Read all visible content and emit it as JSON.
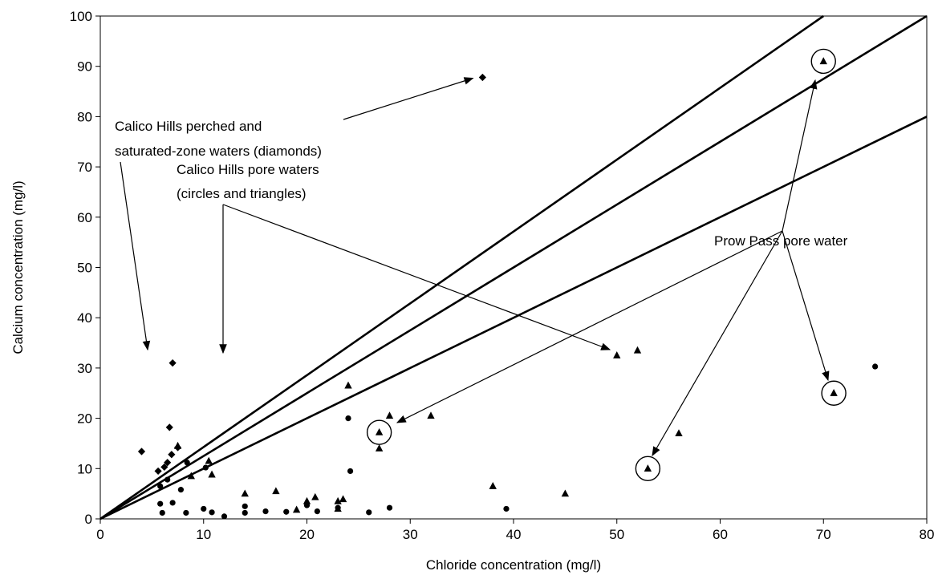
{
  "chart_data": {
    "type": "scatter",
    "title": "",
    "xlabel": "Chloride concentration (mg/l)",
    "ylabel": "Calcium concentration (mg/l)",
    "xlim": [
      0,
      80
    ],
    "ylim": [
      0,
      100
    ],
    "xticks": [
      0,
      10,
      20,
      30,
      40,
      50,
      60,
      70,
      80
    ],
    "yticks": [
      0,
      10,
      20,
      30,
      40,
      50,
      60,
      70,
      80,
      90,
      100
    ],
    "grid": false,
    "reference_lines": [
      {
        "slope": 1.4286
      },
      {
        "slope": 1.25
      },
      {
        "slope": 1.0
      }
    ],
    "series": [
      {
        "marker": "diamond",
        "points": [
          [
            4,
            13.4
          ],
          [
            6.7,
            18.2
          ],
          [
            7,
            31
          ],
          [
            37,
            87.8
          ],
          [
            7.5,
            14.2
          ],
          [
            6.9,
            12.8
          ],
          [
            6.5,
            11.2
          ],
          [
            5.6,
            9.5
          ],
          [
            6.2,
            10.3
          ]
        ]
      },
      {
        "marker": "circle",
        "points": [
          [
            5.8,
            3
          ],
          [
            6,
            1.2
          ],
          [
            5.8,
            6.5
          ],
          [
            6.5,
            7.8
          ],
          [
            7,
            3.2
          ],
          [
            7.8,
            5.8
          ],
          [
            8.3,
            1.2
          ],
          [
            8.4,
            11.2
          ],
          [
            10,
            2
          ],
          [
            10.2,
            10.2
          ],
          [
            10.8,
            1.3
          ],
          [
            12,
            0.5
          ],
          [
            14,
            1.2
          ],
          [
            14,
            2.5
          ],
          [
            16,
            1.5
          ],
          [
            18,
            1.4
          ],
          [
            20,
            2.7
          ],
          [
            21,
            1.5
          ],
          [
            23,
            2.2
          ],
          [
            24,
            20
          ],
          [
            24.2,
            9.5
          ],
          [
            26,
            1.3
          ],
          [
            28,
            2.2
          ],
          [
            39.3,
            2
          ],
          [
            75,
            30.3
          ]
        ]
      },
      {
        "marker": "triangle",
        "points": [
          [
            7.5,
            14.5
          ],
          [
            8.8,
            8.5
          ],
          [
            10.5,
            11.5
          ],
          [
            10.8,
            8.8
          ],
          [
            14,
            5
          ],
          [
            17,
            5.5
          ],
          [
            19,
            1.8
          ],
          [
            20,
            3.5
          ],
          [
            20.8,
            4.3
          ],
          [
            23,
            3.5
          ],
          [
            23.5,
            3.9
          ],
          [
            23,
            2
          ],
          [
            24,
            26.5
          ],
          [
            27,
            14
          ],
          [
            28,
            20.5
          ],
          [
            32,
            20.5
          ],
          [
            38,
            6.5
          ],
          [
            45,
            5
          ],
          [
            50,
            32.5
          ],
          [
            52,
            33.5
          ],
          [
            56,
            17
          ]
        ]
      },
      {
        "marker": "circled-triangle",
        "points": [
          [
            27,
            17.2
          ],
          [
            53,
            10
          ],
          [
            70,
            91
          ],
          [
            71,
            25
          ]
        ]
      }
    ],
    "annotations": [
      {
        "key": "perched",
        "lines": [
          "Calico Hills perched and",
          "saturated-zone waters (diamonds)"
        ]
      },
      {
        "key": "pore",
        "lines": [
          "Calico Hills pore waters",
          "(circles and triangles)"
        ]
      },
      {
        "key": "prow",
        "lines": [
          "Prow Pass pore water"
        ]
      }
    ]
  }
}
